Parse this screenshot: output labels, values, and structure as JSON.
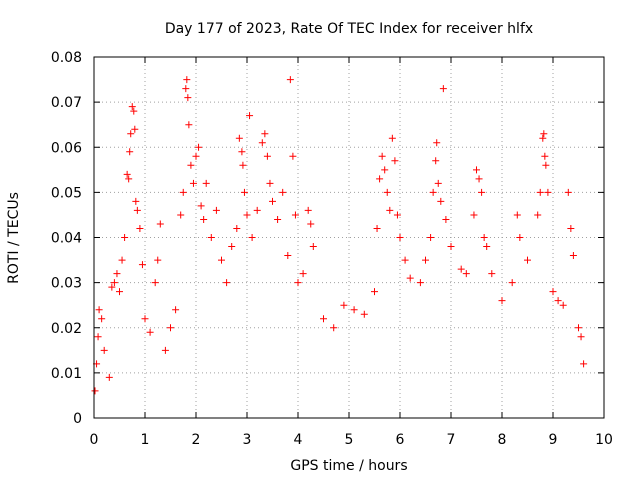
{
  "chart_data": {
    "type": "scatter",
    "title": "Day 177 of 2023, Rate Of TEC Index for receiver hlfx",
    "xlabel": "GPS time / hours",
    "ylabel": "ROTI / TECUs",
    "xlim": [
      0,
      10
    ],
    "ylim": [
      0,
      0.08
    ],
    "x_ticks": [
      0,
      1,
      2,
      3,
      4,
      5,
      6,
      7,
      8,
      9,
      10
    ],
    "x_tick_labels": [
      "0",
      "1",
      "2",
      "3",
      "4",
      "5",
      "6",
      "7",
      "8",
      "9",
      "10"
    ],
    "y_ticks": [
      0,
      0.01,
      0.02,
      0.03,
      0.04,
      0.05,
      0.06,
      0.07,
      0.08
    ],
    "y_tick_labels": [
      "0",
      "0.01",
      "0.02",
      "0.03",
      "0.04",
      "0.05",
      "0.06",
      "0.07",
      "0.08"
    ],
    "grid": true,
    "marker": "+",
    "color": "#ff0000",
    "series": [
      {
        "name": "ROTI",
        "points": [
          [
            0.02,
            0.006
          ],
          [
            0.05,
            0.012
          ],
          [
            0.08,
            0.018
          ],
          [
            0.1,
            0.024
          ],
          [
            0.15,
            0.022
          ],
          [
            0.2,
            0.015
          ],
          [
            0.3,
            0.009
          ],
          [
            0.35,
            0.029
          ],
          [
            0.4,
            0.03
          ],
          [
            0.45,
            0.032
          ],
          [
            0.5,
            0.028
          ],
          [
            0.55,
            0.035
          ],
          [
            0.6,
            0.04
          ],
          [
            0.65,
            0.054
          ],
          [
            0.68,
            0.053
          ],
          [
            0.7,
            0.059
          ],
          [
            0.72,
            0.063
          ],
          [
            0.75,
            0.069
          ],
          [
            0.78,
            0.068
          ],
          [
            0.8,
            0.064
          ],
          [
            0.82,
            0.048
          ],
          [
            0.85,
            0.046
          ],
          [
            0.9,
            0.042
          ],
          [
            0.95,
            0.034
          ],
          [
            1.0,
            0.022
          ],
          [
            1.1,
            0.019
          ],
          [
            1.2,
            0.03
          ],
          [
            1.25,
            0.035
          ],
          [
            1.3,
            0.043
          ],
          [
            1.4,
            0.015
          ],
          [
            1.5,
            0.02
          ],
          [
            1.6,
            0.024
          ],
          [
            1.7,
            0.045
          ],
          [
            1.75,
            0.05
          ],
          [
            1.8,
            0.073
          ],
          [
            1.82,
            0.075
          ],
          [
            1.84,
            0.071
          ],
          [
            1.86,
            0.065
          ],
          [
            1.9,
            0.056
          ],
          [
            1.95,
            0.052
          ],
          [
            2.0,
            0.058
          ],
          [
            2.05,
            0.06
          ],
          [
            2.1,
            0.047
          ],
          [
            2.15,
            0.044
          ],
          [
            2.2,
            0.052
          ],
          [
            2.3,
            0.04
          ],
          [
            2.4,
            0.046
          ],
          [
            2.5,
            0.035
          ],
          [
            2.6,
            0.03
          ],
          [
            2.7,
            0.038
          ],
          [
            2.8,
            0.042
          ],
          [
            2.85,
            0.062
          ],
          [
            2.9,
            0.059
          ],
          [
            2.92,
            0.056
          ],
          [
            2.95,
            0.05
          ],
          [
            3.0,
            0.045
          ],
          [
            3.05,
            0.067
          ],
          [
            3.1,
            0.04
          ],
          [
            3.2,
            0.046
          ],
          [
            3.3,
            0.061
          ],
          [
            3.35,
            0.063
          ],
          [
            3.4,
            0.058
          ],
          [
            3.45,
            0.052
          ],
          [
            3.5,
            0.048
          ],
          [
            3.6,
            0.044
          ],
          [
            3.7,
            0.05
          ],
          [
            3.8,
            0.036
          ],
          [
            3.85,
            0.075
          ],
          [
            3.9,
            0.058
          ],
          [
            3.95,
            0.045
          ],
          [
            4.0,
            0.03
          ],
          [
            4.1,
            0.032
          ],
          [
            4.2,
            0.046
          ],
          [
            4.25,
            0.043
          ],
          [
            4.3,
            0.038
          ],
          [
            4.5,
            0.022
          ],
          [
            4.7,
            0.02
          ],
          [
            4.9,
            0.025
          ],
          [
            5.1,
            0.024
          ],
          [
            5.3,
            0.023
          ],
          [
            5.5,
            0.028
          ],
          [
            5.55,
            0.042
          ],
          [
            5.6,
            0.053
          ],
          [
            5.65,
            0.058
          ],
          [
            5.7,
            0.055
          ],
          [
            5.75,
            0.05
          ],
          [
            5.8,
            0.046
          ],
          [
            5.85,
            0.062
          ],
          [
            5.9,
            0.057
          ],
          [
            5.95,
            0.045
          ],
          [
            6.0,
            0.04
          ],
          [
            6.1,
            0.035
          ],
          [
            6.2,
            0.031
          ],
          [
            6.4,
            0.03
          ],
          [
            6.5,
            0.035
          ],
          [
            6.6,
            0.04
          ],
          [
            6.65,
            0.05
          ],
          [
            6.7,
            0.057
          ],
          [
            6.72,
            0.061
          ],
          [
            6.75,
            0.052
          ],
          [
            6.8,
            0.048
          ],
          [
            6.85,
            0.073
          ],
          [
            6.9,
            0.044
          ],
          [
            7.0,
            0.038
          ],
          [
            7.2,
            0.033
          ],
          [
            7.3,
            0.032
          ],
          [
            7.45,
            0.045
          ],
          [
            7.5,
            0.055
          ],
          [
            7.55,
            0.053
          ],
          [
            7.6,
            0.05
          ],
          [
            7.65,
            0.04
          ],
          [
            7.7,
            0.038
          ],
          [
            7.8,
            0.032
          ],
          [
            8.0,
            0.026
          ],
          [
            8.2,
            0.03
          ],
          [
            8.3,
            0.045
          ],
          [
            8.35,
            0.04
          ],
          [
            8.5,
            0.035
          ],
          [
            8.7,
            0.045
          ],
          [
            8.75,
            0.05
          ],
          [
            8.8,
            0.062
          ],
          [
            8.82,
            0.063
          ],
          [
            8.84,
            0.058
          ],
          [
            8.86,
            0.056
          ],
          [
            8.9,
            0.05
          ],
          [
            9.0,
            0.028
          ],
          [
            9.1,
            0.026
          ],
          [
            9.2,
            0.025
          ],
          [
            9.3,
            0.05
          ],
          [
            9.35,
            0.042
          ],
          [
            9.4,
            0.036
          ],
          [
            9.5,
            0.02
          ],
          [
            9.55,
            0.018
          ],
          [
            9.6,
            0.012
          ]
        ]
      }
    ]
  }
}
